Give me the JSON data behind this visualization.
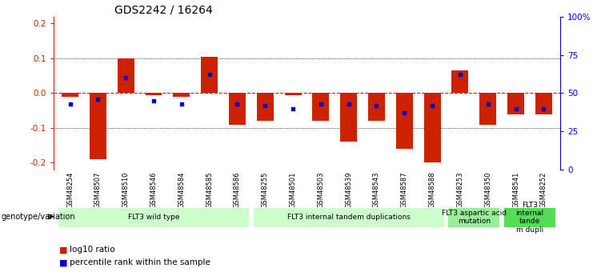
{
  "title": "GDS2242 / 16264",
  "samples": [
    "GSM48254",
    "GSM48507",
    "GSM48510",
    "GSM48546",
    "GSM48584",
    "GSM48585",
    "GSM48586",
    "GSM48255",
    "GSM48501",
    "GSM48503",
    "GSM48539",
    "GSM48543",
    "GSM48587",
    "GSM48588",
    "GSM48253",
    "GSM48350",
    "GSM48541",
    "GSM48252"
  ],
  "log10_ratio": [
    -0.01,
    -0.19,
    0.1,
    -0.005,
    -0.01,
    0.105,
    -0.09,
    -0.08,
    -0.005,
    -0.08,
    -0.14,
    -0.08,
    -0.16,
    -0.2,
    0.065,
    -0.09,
    -0.06,
    -0.06
  ],
  "percentile_rank": [
    43,
    46,
    60,
    45,
    43,
    62,
    43,
    42,
    40,
    43,
    43,
    42,
    37,
    42,
    62,
    43,
    40,
    40
  ],
  "groups": [
    {
      "label": "FLT3 wild type",
      "start": 0,
      "end": 6,
      "color": "#ccffcc"
    },
    {
      "label": "FLT3 internal tandem duplications",
      "start": 7,
      "end": 13,
      "color": "#ccffcc"
    },
    {
      "label": "FLT3 aspartic acid\nmutation",
      "start": 14,
      "end": 15,
      "color": "#99ee99"
    },
    {
      "label": "FLT3\ninternal\ntande\nm dupli",
      "start": 16,
      "end": 17,
      "color": "#55dd55"
    }
  ],
  "ylim": [
    -0.22,
    0.22
  ],
  "yticks_left": [
    -0.2,
    -0.1,
    0.0,
    0.1,
    0.2
  ],
  "yticks_right": [
    0,
    25,
    50,
    75,
    100
  ],
  "bar_color": "#cc2200",
  "dot_color": "#0000cc",
  "background_color": "#ffffff",
  "grid_color": "#000000",
  "zero_line_color": "#cc2200",
  "label_bg": "#cccccc",
  "group_border": "#ffffff"
}
